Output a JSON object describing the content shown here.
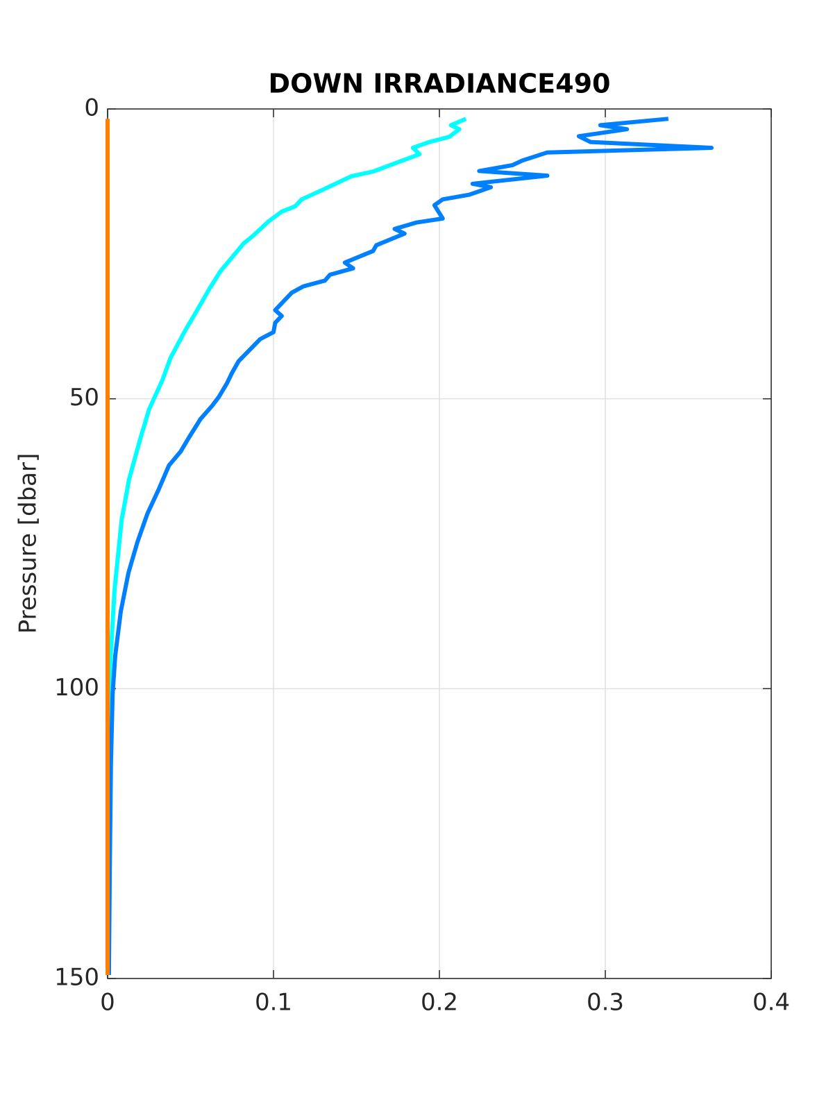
{
  "chart_data": {
    "type": "line",
    "title": "DOWN IRRADIANCE490",
    "ylabel": "Pressure [dbar]",
    "xlim": [
      0,
      0.4
    ],
    "xticks": [
      0,
      0.1,
      0.2,
      0.3,
      0.4
    ],
    "ylim": [
      0,
      150
    ],
    "yticks": [
      0,
      50,
      100,
      150
    ],
    "y_reversed": true,
    "grid": true,
    "series": [
      {
        "color": "#00ffff",
        "pressure": [
          1.7,
          2.8,
          3.5,
          4.8,
          5.7,
          6.7,
          7.8,
          10.8,
          11.6,
          13.9,
          15.6,
          16.8,
          17.7,
          19.4,
          21.8,
          23.2,
          25.6,
          28,
          31.2,
          34.7,
          38.1,
          42.9,
          46.8,
          51.8,
          56.6,
          63.8,
          71,
          83,
          95,
          107,
          148.8
        ],
        "values": [
          0.216,
          0.207,
          0.212,
          0.206,
          0.194,
          0.184,
          0.188,
          0.16,
          0.147,
          0.13,
          0.117,
          0.113,
          0.105,
          0.097,
          0.088,
          0.082,
          0.075,
          0.068,
          0.061,
          0.054,
          0.047,
          0.038,
          0.033,
          0.025,
          0.02,
          0.013,
          0.0084,
          0.0042,
          0.0017,
          0.0004,
          0.0004
        ]
      },
      {
        "color": "#0080ff",
        "pressure": [
          1.7,
          2.8,
          3.5,
          4.7,
          5.7,
          6.7,
          7.5,
          8.9,
          9.7,
          10.7,
          11.5,
          12.9,
          13.5,
          14.8,
          15.6,
          16.6,
          18.9,
          19.6,
          20.7,
          21.5,
          23.5,
          24.5,
          26.5,
          27.5,
          28.6,
          29.6,
          30.6,
          31.7,
          34.7,
          35.7,
          36.9,
          38.5,
          39.7,
          43.5,
          45.5,
          47.3,
          49.7,
          51.2,
          53.5,
          56.7,
          59.1,
          61.5,
          65.5,
          69.8,
          74.7,
          80,
          86.6,
          94.3,
          101,
          113,
          132,
          149.4
        ],
        "values": [
          0.338,
          0.297,
          0.313,
          0.284,
          0.291,
          0.364,
          0.265,
          0.25,
          0.244,
          0.224,
          0.265,
          0.22,
          0.231,
          0.218,
          0.202,
          0.197,
          0.202,
          0.186,
          0.173,
          0.179,
          0.162,
          0.16,
          0.143,
          0.148,
          0.134,
          0.131,
          0.118,
          0.111,
          0.101,
          0.105,
          0.101,
          0.1,
          0.092,
          0.079,
          0.075,
          0.072,
          0.067,
          0.063,
          0.056,
          0.049,
          0.044,
          0.037,
          0.031,
          0.024,
          0.018,
          0.0126,
          0.008,
          0.0046,
          0.003,
          0.002,
          0.0013,
          0.0008
        ]
      },
      {
        "color": "#ff8000",
        "pressure": [
          1.7,
          149.4
        ],
        "values": [
          0,
          0
        ]
      }
    ]
  }
}
